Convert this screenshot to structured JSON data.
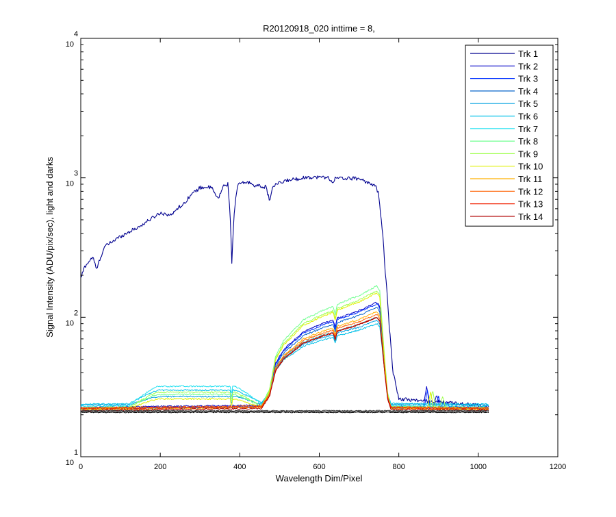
{
  "chart_data": {
    "type": "line",
    "title": "R20120918_020 inttime = 8,",
    "xlabel": "Wavelength Dim/Pixel",
    "ylabel": "Signal Intensity (ADU/pix/sec), light and darks",
    "xlim": [
      0,
      1200
    ],
    "ylim": [
      10,
      10000
    ],
    "yscale": "log",
    "xticks": [
      "0",
      "200",
      "400",
      "600",
      "800",
      "1000",
      "1200"
    ],
    "yticks": [
      {
        "base": "10",
        "exp": "1",
        "value": 10
      },
      {
        "base": "10",
        "exp": "2",
        "value": 100
      },
      {
        "base": "10",
        "exp": "3",
        "value": 1000
      },
      {
        "base": "10",
        "exp": "4",
        "value": 10000
      }
    ],
    "grid": false,
    "legend_position": "top-right",
    "series": [
      {
        "name": "Trk 1",
        "color": "#00008f",
        "shape": "bright",
        "peak": 1000,
        "floor": 23,
        "noise": 0.03
      },
      {
        "name": "Trk 2",
        "color": "#0000c8",
        "shape": "mid",
        "peak": 128,
        "floor": 22.6,
        "red": [
          [
            870,
            32
          ],
          [
            895,
            28
          ],
          [
            920,
            25
          ]
        ],
        "noise": 0.012
      },
      {
        "name": "Trk 3",
        "color": "#0030ff",
        "shape": "mid",
        "peak": 125,
        "floor": 22.2,
        "red": [
          [
            872,
            30
          ],
          [
            900,
            27
          ]
        ],
        "noise": 0.012
      },
      {
        "name": "Trk 4",
        "color": "#0060c8",
        "shape": "mid",
        "peak": 118,
        "floor": 22.0,
        "noise": 0.012
      },
      {
        "name": "Trk 5",
        "color": "#00a0e0",
        "shape": "mid",
        "peak": 95,
        "floor": 23.5,
        "blue": 27,
        "noise": 0.012
      },
      {
        "name": "Trk 6",
        "color": "#00c0e8",
        "shape": "mid",
        "peak": 90,
        "floor": 23.8,
        "blue": 30,
        "noise": 0.012
      },
      {
        "name": "Trk 7",
        "color": "#20e0f0",
        "shape": "mid",
        "peak": 100,
        "floor": 23.0,
        "blue": 32,
        "noise": 0.012
      },
      {
        "name": "Trk 8",
        "color": "#70ff90",
        "shape": "mid",
        "peak": 168,
        "floor": 22.5,
        "blue": 28,
        "noise": 0.012
      },
      {
        "name": "Trk 9",
        "color": "#a0ff50",
        "shape": "mid",
        "peak": 155,
        "floor": 22.3,
        "blue": 29,
        "red": [
          [
            885,
            30
          ],
          [
            910,
            27
          ]
        ],
        "noise": 0.012
      },
      {
        "name": "Trk 10",
        "color": "#e0f000",
        "shape": "mid",
        "peak": 150,
        "floor": 22.0,
        "blue": 26,
        "red": [
          [
            880,
            29
          ]
        ],
        "noise": 0.012
      },
      {
        "name": "Trk 11",
        "color": "#ffb000",
        "shape": "mid",
        "peak": 110,
        "floor": 21.8,
        "noise": 0.012
      },
      {
        "name": "Trk 12",
        "color": "#ff6000",
        "shape": "mid",
        "peak": 105,
        "floor": 22.4,
        "noise": 0.012
      },
      {
        "name": "Trk 13",
        "color": "#f02000",
        "shape": "mid",
        "peak": 100,
        "floor": 22.1,
        "noise": 0.012
      },
      {
        "name": "Trk 14",
        "color": "#b00000",
        "shape": "mid",
        "peak": 100,
        "floor": 21.5,
        "noise": 0.012
      },
      {
        "shape": "dark",
        "color": "#000000",
        "floor": 20.8,
        "noise": 0.008
      },
      {
        "shape": "dark",
        "color": "#202020",
        "floor": 21.1,
        "noise": 0.008
      },
      {
        "shape": "dark",
        "color": "#404040",
        "floor": 21.4,
        "noise": 0.008
      }
    ]
  }
}
